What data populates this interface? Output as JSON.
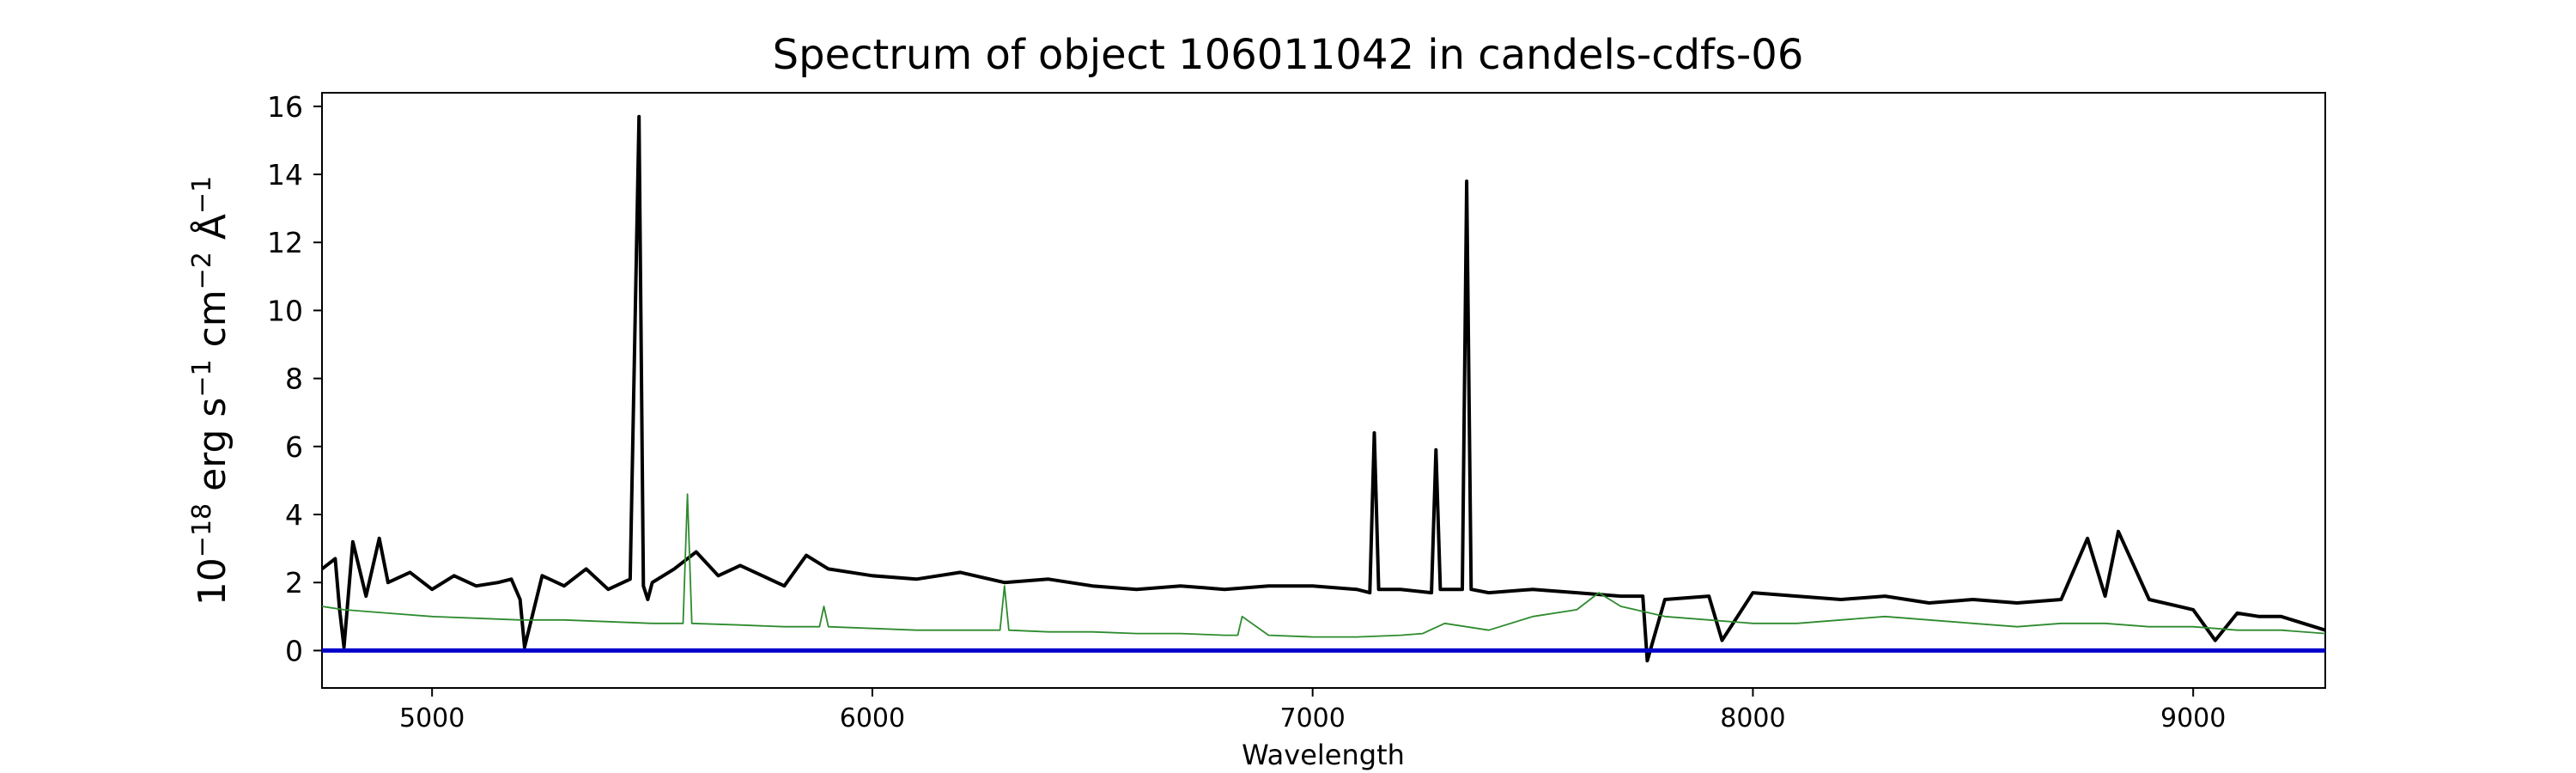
{
  "chart_data": {
    "type": "line",
    "title": "Spectrum of object 106011042 in candels-cdfs-06",
    "xlabel": "Wavelength",
    "ylabel": {
      "base": "10",
      "exp1": "−18",
      "unit1": " erg s",
      "exp2": "−1",
      "unit2": " cm",
      "exp3": "−2",
      "unit3": " Å",
      "exp4": "−1"
    },
    "xlim": [
      4750,
      9300
    ],
    "ylim": [
      -1.1,
      16.4
    ],
    "x_ticks": [
      5000,
      6000,
      7000,
      8000,
      9000
    ],
    "x_tick_labels": [
      "5000",
      "6000",
      "7000",
      "8000",
      "9000"
    ],
    "y_ticks": [
      0,
      2,
      4,
      6,
      8,
      10,
      12,
      14,
      16
    ],
    "y_tick_labels": [
      "0",
      "2",
      "4",
      "6",
      "8",
      "10",
      "12",
      "14",
      "16"
    ],
    "grid": false,
    "series": [
      {
        "color": "#000000",
        "x": [
          4750,
          4780,
          4790,
          4800,
          4820,
          4850,
          4880,
          4900,
          4950,
          5000,
          5050,
          5100,
          5150,
          5180,
          5200,
          5210,
          5250,
          5300,
          5350,
          5400,
          5450,
          5470,
          5480,
          5490,
          5500,
          5550,
          5600,
          5650,
          5700,
          5800,
          5850,
          5900,
          6000,
          6100,
          6200,
          6300,
          6400,
          6500,
          6600,
          6700,
          6800,
          6900,
          7000,
          7100,
          7130,
          7140,
          7150,
          7200,
          7270,
          7280,
          7290,
          7340,
          7350,
          7360,
          7400,
          7500,
          7600,
          7700,
          7750,
          7760,
          7800,
          7900,
          7930,
          8000,
          8100,
          8200,
          8300,
          8400,
          8500,
          8600,
          8700,
          8760,
          8800,
          8830,
          8900,
          9000,
          9050,
          9100,
          9150,
          9200,
          9300
        ],
        "y": [
          2.4,
          2.7,
          1.2,
          0.1,
          3.2,
          1.6,
          3.3,
          2.0,
          2.3,
          1.8,
          2.2,
          1.9,
          2.0,
          2.1,
          1.5,
          0.1,
          2.2,
          1.9,
          2.4,
          1.8,
          2.1,
          15.7,
          1.9,
          1.5,
          2.0,
          2.4,
          2.9,
          2.2,
          2.5,
          1.9,
          2.8,
          2.4,
          2.2,
          2.1,
          2.3,
          2.0,
          2.1,
          1.9,
          1.8,
          1.9,
          1.8,
          1.9,
          1.9,
          1.8,
          1.7,
          6.4,
          1.8,
          1.8,
          1.7,
          5.9,
          1.8,
          1.8,
          13.8,
          1.8,
          1.7,
          1.8,
          1.7,
          1.6,
          1.6,
          -0.3,
          1.5,
          1.6,
          0.3,
          1.7,
          1.6,
          1.5,
          1.6,
          1.4,
          1.5,
          1.4,
          1.5,
          3.3,
          1.6,
          3.5,
          1.5,
          1.2,
          0.3,
          1.1,
          1.0,
          1.0,
          0.6
        ]
      },
      {
        "color": "#2e8b2e",
        "x": [
          4750,
          4800,
          4900,
          5000,
          5100,
          5200,
          5300,
          5400,
          5500,
          5570,
          5580,
          5590,
          5700,
          5800,
          5880,
          5890,
          5900,
          6000,
          6100,
          6200,
          6290,
          6300,
          6310,
          6400,
          6500,
          6600,
          6700,
          6800,
          6830,
          6840,
          6900,
          7000,
          7100,
          7200,
          7250,
          7300,
          7400,
          7500,
          7600,
          7650,
          7700,
          7800,
          7900,
          8000,
          8100,
          8200,
          8300,
          8400,
          8500,
          8600,
          8700,
          8800,
          8900,
          9000,
          9100,
          9200,
          9300
        ],
        "y": [
          1.3,
          1.2,
          1.1,
          1.0,
          0.95,
          0.9,
          0.9,
          0.85,
          0.8,
          0.8,
          4.6,
          0.8,
          0.75,
          0.7,
          0.7,
          1.3,
          0.7,
          0.65,
          0.6,
          0.6,
          0.6,
          1.9,
          0.6,
          0.55,
          0.55,
          0.5,
          0.5,
          0.45,
          0.45,
          1.0,
          0.45,
          0.4,
          0.4,
          0.45,
          0.5,
          0.8,
          0.6,
          1.0,
          1.2,
          1.7,
          1.3,
          1.0,
          0.9,
          0.8,
          0.8,
          0.9,
          1.0,
          0.9,
          0.8,
          0.7,
          0.8,
          0.8,
          0.7,
          0.7,
          0.6,
          0.6,
          0.5
        ]
      },
      {
        "color": "#0000cc",
        "x": [
          4750,
          9300
        ],
        "y": [
          0,
          0
        ]
      }
    ]
  }
}
